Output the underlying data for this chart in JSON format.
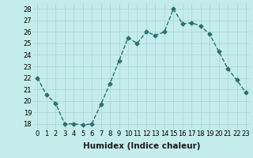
{
  "x": [
    0,
    1,
    2,
    3,
    4,
    5,
    6,
    7,
    8,
    9,
    10,
    11,
    12,
    13,
    14,
    15,
    16,
    17,
    18,
    19,
    20,
    21,
    22,
    23
  ],
  "y": [
    22,
    20.5,
    19.8,
    18,
    18,
    17.9,
    18,
    19.7,
    21.5,
    23.5,
    25.5,
    25,
    26,
    25.7,
    26,
    28,
    26.7,
    26.8,
    26.5,
    25.8,
    24.3,
    22.8,
    21.8,
    20.7
  ],
  "line_color": "#2d6e6e",
  "marker": "D",
  "markersize": 2.5,
  "linewidth": 1.0,
  "bg_color": "#c5ecec",
  "grid_color": "#aad8d8",
  "xlabel": "Humidex (Indice chaleur)",
  "xlim": [
    -0.5,
    23.5
  ],
  "ylim": [
    17.5,
    28.5
  ],
  "yticks": [
    18,
    19,
    20,
    21,
    22,
    23,
    24,
    25,
    26,
    27,
    28
  ],
  "xticks": [
    0,
    1,
    2,
    3,
    4,
    5,
    6,
    7,
    8,
    9,
    10,
    11,
    12,
    13,
    14,
    15,
    16,
    17,
    18,
    19,
    20,
    21,
    22,
    23
  ],
  "xlabel_fontsize": 7.5,
  "tick_fontsize": 6.0
}
